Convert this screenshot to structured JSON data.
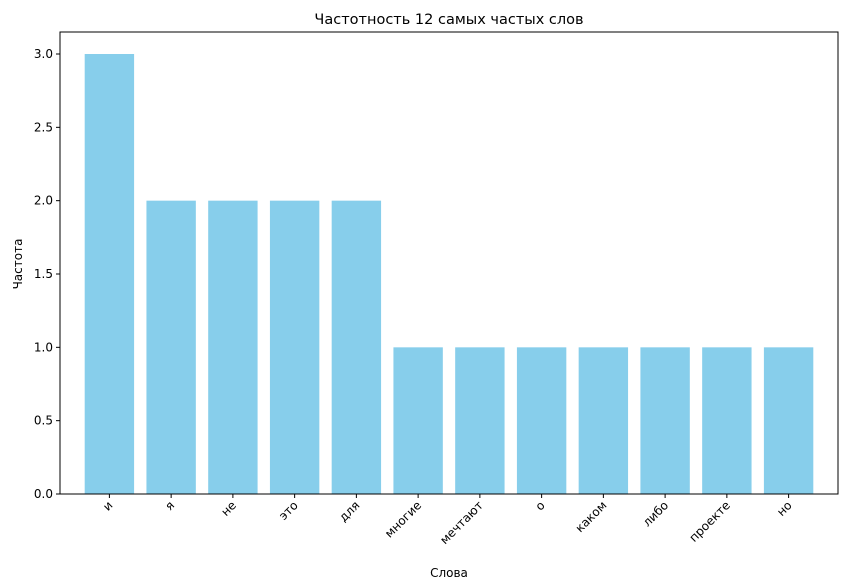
{
  "chart_data": {
    "type": "bar",
    "title": "Частотность 12 самых частых слов",
    "xlabel": "Слова",
    "ylabel": "Частота",
    "categories": [
      "и",
      "я",
      "не",
      "это",
      "для",
      "многие",
      "мечтают",
      "о",
      "каком",
      "либо",
      "проекте",
      "но"
    ],
    "values": [
      3,
      2,
      2,
      2,
      2,
      1,
      1,
      1,
      1,
      1,
      1,
      1
    ],
    "yticks": [
      "0.0",
      "0.5",
      "1.0",
      "1.5",
      "2.0",
      "2.5",
      "3.0"
    ],
    "ylim": [
      0,
      3.15
    ],
    "bar_color": "#87ceeb",
    "grid": false,
    "xtick_rotation": 45
  }
}
